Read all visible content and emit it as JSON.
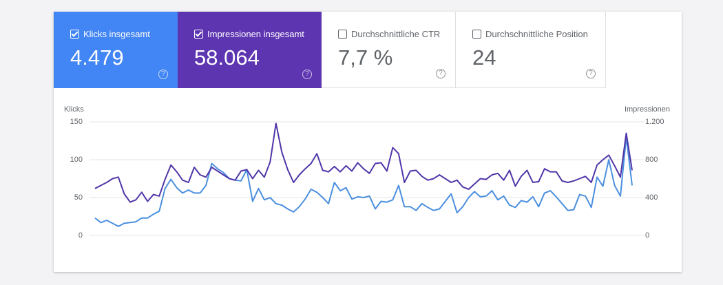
{
  "cards": [
    {
      "label": "Klicks insgesamt",
      "value": "4.479"
    },
    {
      "label": "Impressionen insgesamt",
      "value": "58.064"
    },
    {
      "label": "Durchschnittliche CTR",
      "value": "7,7 %"
    },
    {
      "label": "Durchschnittliche Position",
      "value": "24"
    }
  ],
  "chart_data": {
    "type": "line",
    "y_label": "Klicks",
    "y2_label": "Impressionen",
    "ylim": [
      0,
      150
    ],
    "yticks": [
      0,
      50,
      100,
      150
    ],
    "y2lim": [
      0,
      1200
    ],
    "y2ticks": [
      0,
      400,
      800,
      {
        "value": 1200,
        "label": "1.200"
      }
    ],
    "grid": true,
    "categories": [
      null,
      null,
      null,
      null,
      null,
      null,
      null,
      null,
      null,
      null,
      null,
      null,
      null,
      null,
      null,
      null,
      null,
      null,
      null,
      null,
      null,
      null,
      null,
      null,
      null,
      null,
      null,
      null,
      null,
      null,
      null,
      null,
      null,
      null,
      null,
      null,
      null,
      null,
      null,
      null,
      null,
      null,
      null,
      null,
      null,
      null,
      null,
      null,
      null,
      null,
      null,
      null,
      null,
      null,
      null,
      null,
      null,
      null,
      null,
      null,
      null,
      null,
      null,
      null,
      null,
      null,
      null,
      null,
      null,
      null,
      null,
      null,
      null,
      null,
      null,
      null,
      null,
      null,
      null,
      null,
      null,
      null,
      null,
      null,
      null,
      null,
      null,
      null,
      null,
      null,
      null,
      null,
      null
    ],
    "series": [
      {
        "name": "Klicks",
        "color": "#4a8fdf",
        "values": [
          23,
          17,
          20,
          16,
          12,
          16,
          17,
          18,
          23,
          23,
          28,
          32,
          62,
          74,
          63,
          56,
          60,
          56,
          56,
          66,
          95,
          88,
          83,
          75,
          73,
          72,
          87,
          45,
          62,
          47,
          50,
          42,
          40,
          35,
          31,
          38,
          48,
          61,
          57,
          50,
          42,
          70,
          59,
          63,
          48,
          51,
          50,
          52,
          35,
          45,
          44,
          47,
          66,
          38,
          38,
          33,
          42,
          37,
          33,
          35,
          45,
          55,
          30,
          38,
          50,
          58,
          51,
          52,
          59,
          47,
          52,
          40,
          37,
          46,
          44,
          51,
          38,
          56,
          59,
          51,
          42,
          33,
          34,
          54,
          52,
          37,
          77,
          65,
          100,
          66,
          52,
          130,
          66
        ]
      },
      {
        "name": "Impressionen",
        "color": "#5035a8",
        "axis": "y2",
        "values": [
          496,
          528,
          560,
          600,
          616,
          440,
          352,
          376,
          456,
          360,
          432,
          416,
          592,
          744,
          672,
          584,
          560,
          720,
          640,
          616,
          720,
          680,
          640,
          600,
          584,
          680,
          696,
          600,
          688,
          616,
          776,
          1184,
          880,
          696,
          560,
          640,
          704,
          760,
          864,
          688,
          672,
          728,
          672,
          736,
          680,
          768,
          704,
          656,
          760,
          768,
          680,
          928,
          864,
          560,
          680,
          688,
          624,
          584,
          600,
          640,
          600,
          560,
          584,
          512,
          488,
          544,
          600,
          592,
          640,
          656,
          584,
          688,
          520,
          624,
          688,
          560,
          568,
          704,
          672,
          672,
          576,
          560,
          576,
          600,
          624,
          560,
          744,
          800,
          848,
          736,
          616,
          1080,
          688
        ]
      }
    ]
  }
}
